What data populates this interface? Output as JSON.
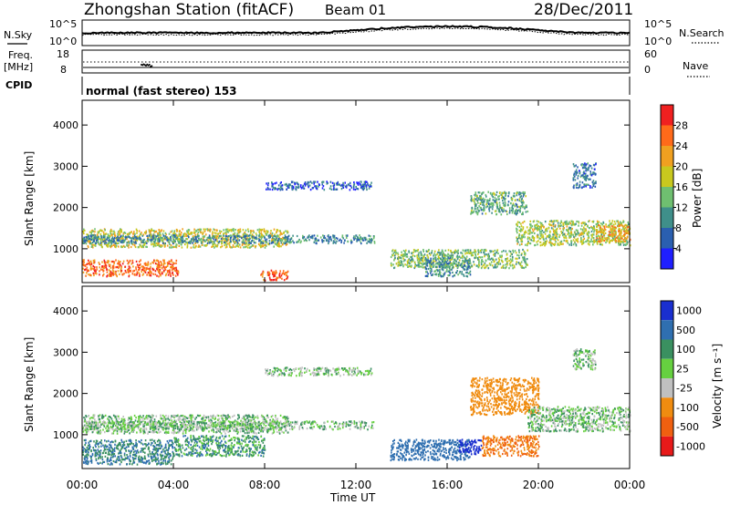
{
  "header": {
    "station": "Zhongshan Station (fitACF)",
    "beam": "Beam 01",
    "date": "28/Dec/2011"
  },
  "strip": {
    "nsky_label": "N.Sky",
    "nsearch_label": "N.Search",
    "freq_label": "Freq.",
    "freq_unit": "[MHz]",
    "nave_label": "Nave",
    "cpid_label": "CPID",
    "cpid_text": "normal (fast stereo) 153",
    "left_ticks_noise": [
      "10^5",
      "10^0"
    ],
    "right_ticks_noise": [
      "10^5",
      "10^0"
    ],
    "left_ticks_freq": [
      "18",
      "8"
    ],
    "right_ticks_nave": [
      "60",
      "0"
    ]
  },
  "axes": {
    "ylabel": "Slant Range [km]",
    "xlabel": "Time UT",
    "yticks": [
      "1000",
      "2000",
      "3000",
      "4000"
    ],
    "xticks": [
      "00:00",
      "04:00",
      "08:00",
      "12:00",
      "16:00",
      "20:00",
      "00:00"
    ]
  },
  "colorbars": {
    "power_label": "Power [dB]",
    "power_ticks": [
      "4",
      "8",
      "12",
      "16",
      "20",
      "24",
      "28"
    ],
    "power_colors": [
      "#1f1fff",
      "#2a5fb0",
      "#3f8f8a",
      "#6fbf70",
      "#c8c81e",
      "#f0a020",
      "#ff6a1a",
      "#f02020"
    ],
    "velocity_label": "Velocity [m s⁻¹]",
    "velocity_ticks": [
      "1000",
      "500",
      "100",
      "25",
      "-25",
      "-100",
      "-500",
      "-1000"
    ],
    "velocity_colors": [
      "#1a2fd0",
      "#2f6fb0",
      "#3a9060",
      "#66d040",
      "#c0c0c0",
      "#f08c10",
      "#f06010",
      "#e81a1a"
    ]
  },
  "chart_data": [
    {
      "type": "heatmap",
      "title": "",
      "xlabel": "Time UT",
      "ylabel": "Slant Range [km]",
      "xlim": [
        0,
        24
      ],
      "ylim": [
        180,
        4600
      ],
      "colorbar_label": "Power [dB]",
      "colorbar_range": [
        0,
        30
      ],
      "regions": [
        {
          "t": [
            0.0,
            4.2
          ],
          "r": [
            350,
            750
          ],
          "level": 26
        },
        {
          "t": [
            0.0,
            9.0
          ],
          "r": [
            1050,
            1500
          ],
          "level": 18
        },
        {
          "t": [
            0.0,
            12.8
          ],
          "r": [
            1150,
            1350
          ],
          "level": 9
        },
        {
          "t": [
            7.8,
            9.0
          ],
          "r": [
            250,
            500
          ],
          "level": 27
        },
        {
          "t": [
            8.0,
            12.7
          ],
          "r": [
            2450,
            2650
          ],
          "level": 6
        },
        {
          "t": [
            13.5,
            19.5
          ],
          "r": [
            550,
            1000
          ],
          "level": 14
        },
        {
          "t": [
            15.0,
            17.0
          ],
          "r": [
            350,
            800
          ],
          "level": 10
        },
        {
          "t": [
            17.0,
            19.5
          ],
          "r": [
            1850,
            2400
          ],
          "level": 12
        },
        {
          "t": [
            19.0,
            24.0
          ],
          "r": [
            1100,
            1700
          ],
          "level": 16
        },
        {
          "t": [
            21.5,
            22.5
          ],
          "r": [
            2500,
            3100
          ],
          "level": 8
        },
        {
          "t": [
            22.5,
            24.0
          ],
          "r": [
            1200,
            1600
          ],
          "level": 22
        }
      ]
    },
    {
      "type": "heatmap",
      "title": "",
      "xlabel": "Time UT",
      "ylabel": "Slant Range [km]",
      "xlim": [
        0,
        24
      ],
      "ylim": [
        180,
        4600
      ],
      "colorbar_label": "Velocity [m s⁻¹]",
      "colorbar_range": [
        -1000,
        1000
      ],
      "regions": [
        {
          "t": [
            0.0,
            9.0
          ],
          "r": [
            1050,
            1500
          ],
          "velocity": 0
        },
        {
          "t": [
            0.0,
            12.8
          ],
          "r": [
            1150,
            1350
          ],
          "velocity": 0
        },
        {
          "t": [
            0.0,
            4.0
          ],
          "r": [
            300,
            900
          ],
          "velocity": 100
        },
        {
          "t": [
            4.0,
            8.0
          ],
          "r": [
            500,
            1000
          ],
          "velocity": 60
        },
        {
          "t": [
            8.0,
            12.7
          ],
          "r": [
            2450,
            2650
          ],
          "velocity": 0
        },
        {
          "t": [
            13.5,
            17.0
          ],
          "r": [
            400,
            900
          ],
          "velocity": 200
        },
        {
          "t": [
            16.5,
            17.5
          ],
          "r": [
            550,
            900
          ],
          "velocity": 600
        },
        {
          "t": [
            17.0,
            20.0
          ],
          "r": [
            1500,
            2400
          ],
          "velocity": -300
        },
        {
          "t": [
            17.5,
            20.0
          ],
          "r": [
            500,
            1000
          ],
          "velocity": -500
        },
        {
          "t": [
            19.5,
            24.0
          ],
          "r": [
            1100,
            1700
          ],
          "velocity": 0
        },
        {
          "t": [
            21.5,
            22.5
          ],
          "r": [
            2600,
            3100
          ],
          "velocity": 0
        }
      ]
    }
  ]
}
